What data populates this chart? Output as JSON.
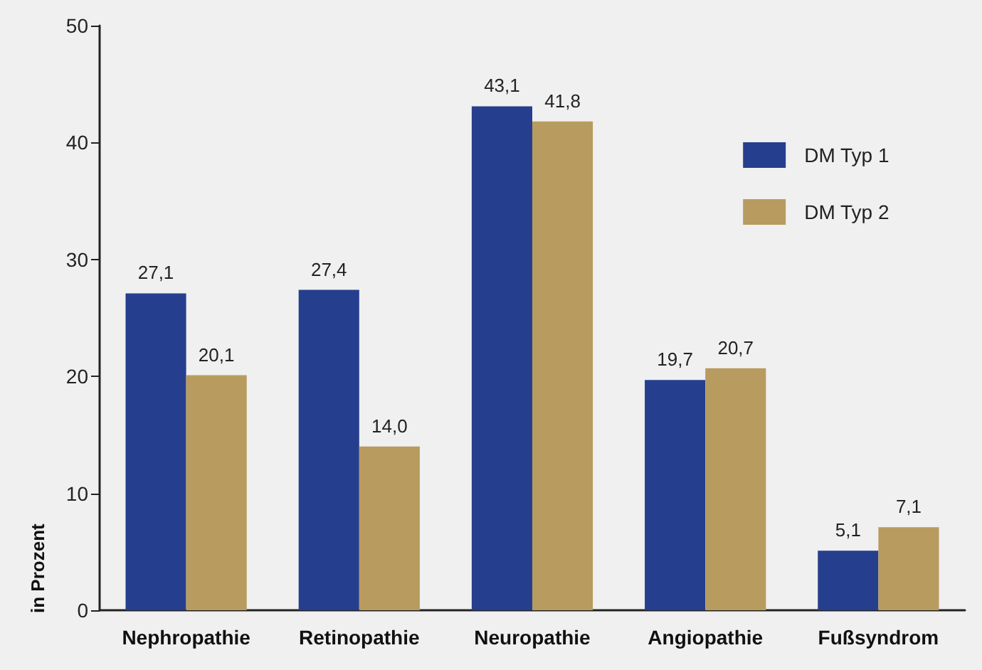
{
  "chart_data": {
    "type": "bar",
    "ylabel": "in Prozent",
    "categories": [
      "Nephropathie",
      "Retinopathie",
      "Neuropathie",
      "Angiopathie",
      "Fußsyndrom"
    ],
    "series": [
      {
        "name": "DM Typ 1",
        "color": "#253f8e",
        "values": [
          27.1,
          27.4,
          43.1,
          19.7,
          5.1
        ],
        "value_labels": [
          "27,1",
          "27,4",
          "43,1",
          "19,7",
          "5,1"
        ]
      },
      {
        "name": "DM Typ 2",
        "color": "#b89b5e",
        "values": [
          20.1,
          14.0,
          41.8,
          20.7,
          7.1
        ],
        "value_labels": [
          "20,1",
          "14,0",
          "41,8",
          "20,7",
          "7,1"
        ]
      }
    ],
    "ylim": [
      0,
      50
    ],
    "yticks": [
      0,
      10,
      20,
      30,
      40,
      50
    ],
    "grid": false,
    "legend": "top right"
  }
}
